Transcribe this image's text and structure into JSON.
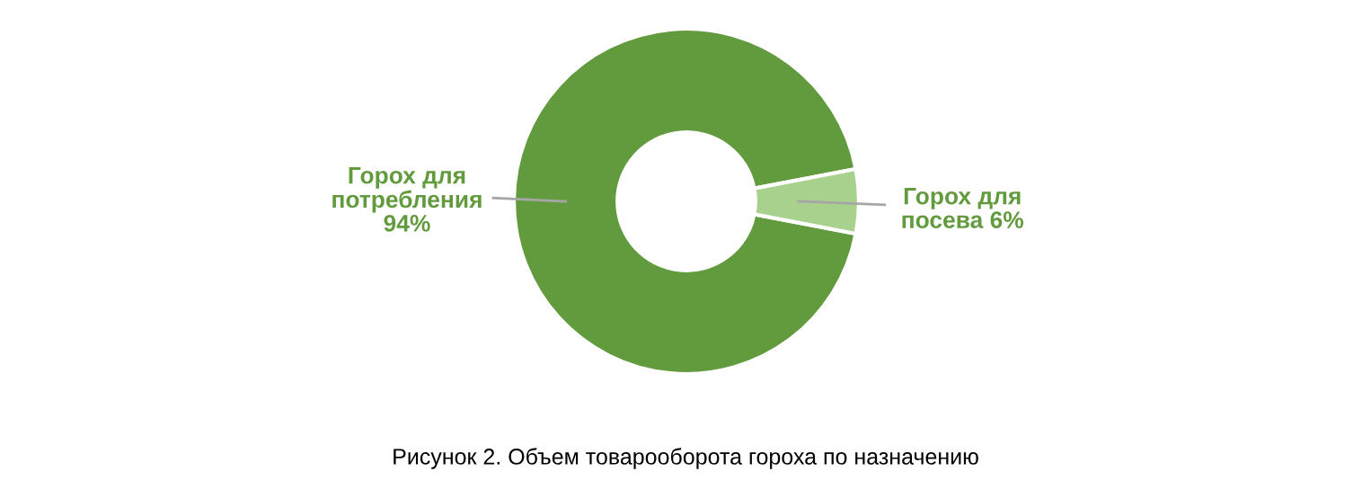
{
  "chart_data": {
    "type": "donut",
    "categories": [
      "Горох для потребления",
      "Горох для посева"
    ],
    "values": [
      94,
      6
    ],
    "value_labels": [
      "94%",
      "6%"
    ],
    "colors": [
      "#629a3e",
      "#a9d18e"
    ],
    "legend": false,
    "annotations": [
      "Рисунок 2. Объем товарооборота гороха по назначению"
    ]
  }
}
